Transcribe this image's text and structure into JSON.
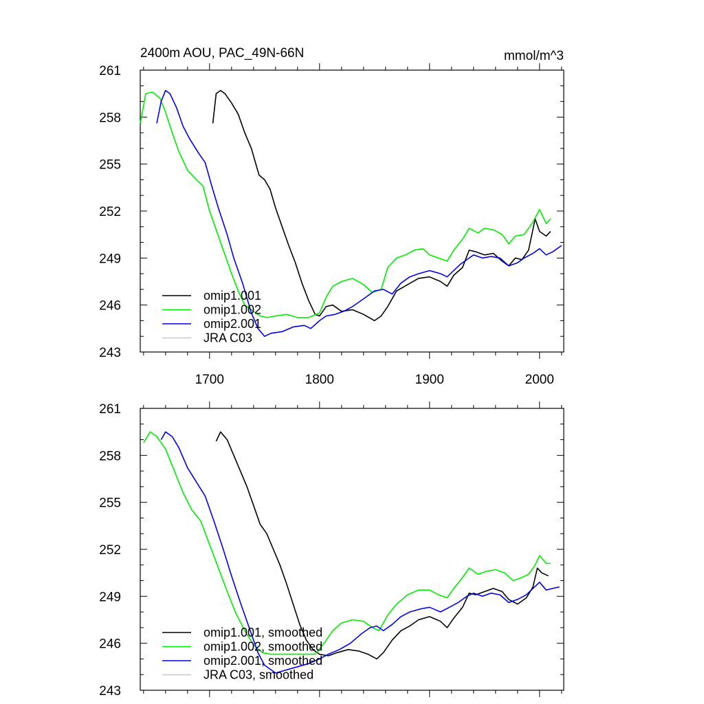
{
  "chart_data": [
    {
      "type": "line",
      "title": "2400m AOU, PAC_49N-66N",
      "units": "mmol/m^3",
      "xlim": [
        1637,
        2022
      ],
      "ylim": [
        243,
        261
      ],
      "xticks": [
        "1700",
        "1800",
        "1900",
        "2000"
      ],
      "yticks": [
        "261",
        "258",
        "255",
        "252",
        "249",
        "246",
        "243"
      ],
      "legend": {
        "placement": "lower-left",
        "entries": [
          "omip1.001",
          "omip1.002",
          "omip2.001",
          "JRA C03"
        ]
      },
      "series": [
        {
          "name": "omip1.001",
          "color": "#000000",
          "x": [
            1703,
            1706,
            1710,
            1714,
            1720,
            1726,
            1732,
            1738,
            1745,
            1750,
            1755,
            1760,
            1766,
            1772,
            1778,
            1784,
            1790,
            1796,
            1800,
            1806,
            1812,
            1820,
            1830,
            1840,
            1850,
            1856,
            1862,
            1870,
            1880,
            1890,
            1900,
            1910,
            1916,
            1922,
            1930,
            1936,
            1942,
            1950,
            1958,
            1966,
            1972,
            1978,
            1984,
            1990,
            1996,
            2000,
            2006,
            2010
          ],
          "values": [
            257.6,
            259.5,
            259.7,
            259.5,
            258.9,
            258.2,
            257.0,
            256.0,
            254.3,
            254.0,
            253.4,
            252.2,
            251.0,
            249.8,
            248.7,
            247.4,
            246.3,
            245.4,
            245.3,
            245.9,
            246.0,
            245.6,
            245.7,
            245.4,
            245.0,
            245.3,
            245.9,
            246.9,
            247.3,
            247.7,
            247.8,
            247.5,
            247.2,
            247.9,
            248.4,
            249.5,
            249.4,
            249.2,
            249.3,
            248.8,
            248.5,
            249.0,
            248.9,
            249.5,
            251.5,
            250.7,
            250.4,
            250.7
          ]
        },
        {
          "name": "omip1.002",
          "color": "#00ee00",
          "x": [
            1637,
            1642,
            1648,
            1655,
            1660,
            1666,
            1672,
            1680,
            1688,
            1694,
            1700,
            1706,
            1712,
            1720,
            1726,
            1732,
            1740,
            1746,
            1752,
            1760,
            1770,
            1780,
            1790,
            1800,
            1806,
            1812,
            1820,
            1830,
            1840,
            1848,
            1856,
            1862,
            1870,
            1878,
            1886,
            1894,
            1900,
            1908,
            1916,
            1922,
            1930,
            1936,
            1944,
            1950,
            1958,
            1966,
            1972,
            1978,
            1986,
            1994,
            2000,
            2006,
            2010
          ],
          "values": [
            257.6,
            259.5,
            259.6,
            259.2,
            258.3,
            257.0,
            255.8,
            254.6,
            254.0,
            253.6,
            252.0,
            250.8,
            249.6,
            248.0,
            246.9,
            246.0,
            245.6,
            245.3,
            245.2,
            245.3,
            245.4,
            245.2,
            245.2,
            245.5,
            246.5,
            247.2,
            247.5,
            247.7,
            247.3,
            246.8,
            247.0,
            248.4,
            249.0,
            249.2,
            249.5,
            249.6,
            249.2,
            249.0,
            248.8,
            249.5,
            250.2,
            250.9,
            250.6,
            250.9,
            250.8,
            250.5,
            249.9,
            250.4,
            250.5,
            251.3,
            252.1,
            251.2,
            251.5
          ]
        },
        {
          "name": "omip2.001",
          "color": "#0000ee",
          "x": [
            1652,
            1656,
            1660,
            1664,
            1670,
            1676,
            1682,
            1690,
            1696,
            1702,
            1708,
            1716,
            1722,
            1730,
            1738,
            1744,
            1750,
            1756,
            1766,
            1776,
            1786,
            1792,
            1800,
            1806,
            1814,
            1822,
            1830,
            1840,
            1850,
            1858,
            1866,
            1874,
            1882,
            1890,
            1900,
            1910,
            1916,
            1922,
            1928,
            1934,
            1940,
            1948,
            1956,
            1964,
            1972,
            1980,
            1986,
            1994,
            2000,
            2006,
            2012,
            2020
          ],
          "values": [
            257.6,
            259.0,
            259.7,
            259.5,
            258.6,
            257.4,
            256.6,
            255.7,
            255.1,
            253.6,
            252.2,
            250.5,
            249.0,
            247.4,
            245.5,
            244.5,
            244.0,
            244.2,
            244.3,
            244.6,
            244.7,
            244.5,
            245.0,
            245.3,
            245.4,
            245.6,
            245.9,
            246.4,
            246.9,
            247.0,
            246.7,
            247.4,
            247.8,
            248.0,
            248.2,
            248.0,
            247.8,
            248.2,
            248.6,
            248.9,
            249.2,
            249.0,
            249.1,
            249.0,
            248.5,
            248.7,
            249.0,
            249.3,
            249.6,
            249.2,
            249.4,
            249.8
          ]
        },
        {
          "name": "JRA C03",
          "color": "#c8c8c8",
          "x": [],
          "values": []
        }
      ]
    },
    {
      "type": "line",
      "title": "",
      "units": "",
      "xlim": [
        1637,
        2022
      ],
      "ylim": [
        243,
        261
      ],
      "xticks": [],
      "yticks": [
        "261",
        "258",
        "255",
        "252",
        "249",
        "246",
        "243"
      ],
      "legend": {
        "placement": "lower-left",
        "entries": [
          "omip1.001, smoothed",
          "omip1.002, smoothed",
          "omip2.001, smoothed",
          "JRA C03, smoothed"
        ]
      },
      "series": [
        {
          "name": "omip1.001, smoothed",
          "color": "#000000",
          "x": [
            1706,
            1710,
            1716,
            1722,
            1728,
            1734,
            1740,
            1746,
            1752,
            1758,
            1764,
            1770,
            1776,
            1782,
            1788,
            1794,
            1800,
            1808,
            1816,
            1826,
            1836,
            1844,
            1852,
            1858,
            1866,
            1874,
            1882,
            1890,
            1900,
            1910,
            1916,
            1922,
            1930,
            1936,
            1942,
            1950,
            1958,
            1966,
            1972,
            1980,
            1988,
            1994,
            1998,
            2002,
            2008
          ],
          "values": [
            258.9,
            259.5,
            259.0,
            258.0,
            257.0,
            256.0,
            254.8,
            253.6,
            253.0,
            252.0,
            251.0,
            249.8,
            248.5,
            247.2,
            246.2,
            245.6,
            245.3,
            245.2,
            245.4,
            245.6,
            245.5,
            245.3,
            245.0,
            245.4,
            246.2,
            246.8,
            247.1,
            247.5,
            247.7,
            247.4,
            247.0,
            247.6,
            248.3,
            249.2,
            249.1,
            249.3,
            249.5,
            249.3,
            248.8,
            248.5,
            248.9,
            249.6,
            250.8,
            250.5,
            250.3
          ]
        },
        {
          "name": "omip1.002, smoothed",
          "color": "#00ee00",
          "x": [
            1640,
            1646,
            1652,
            1660,
            1668,
            1676,
            1684,
            1692,
            1700,
            1708,
            1716,
            1724,
            1732,
            1740,
            1748,
            1756,
            1766,
            1776,
            1786,
            1796,
            1804,
            1812,
            1820,
            1830,
            1840,
            1848,
            1854,
            1862,
            1870,
            1880,
            1890,
            1900,
            1908,
            1916,
            1922,
            1930,
            1936,
            1944,
            1952,
            1960,
            1968,
            1976,
            1984,
            1990,
            1996,
            2000,
            2006,
            2010
          ],
          "values": [
            258.8,
            259.5,
            259.2,
            258.4,
            257.0,
            255.6,
            254.5,
            253.8,
            252.3,
            250.8,
            249.3,
            247.9,
            246.8,
            245.9,
            245.4,
            245.3,
            245.3,
            245.3,
            245.3,
            245.3,
            246.0,
            246.8,
            247.3,
            247.5,
            247.4,
            247.0,
            246.8,
            247.8,
            248.5,
            249.1,
            249.4,
            249.4,
            249.1,
            248.9,
            249.5,
            250.2,
            250.8,
            250.4,
            250.6,
            250.7,
            250.5,
            250.0,
            250.2,
            250.4,
            251.0,
            251.6,
            251.1,
            251.1
          ]
        },
        {
          "name": "omip2.001, smoothed",
          "color": "#0000ee",
          "x": [
            1656,
            1660,
            1666,
            1672,
            1680,
            1688,
            1696,
            1704,
            1712,
            1720,
            1728,
            1736,
            1744,
            1750,
            1760,
            1770,
            1780,
            1790,
            1800,
            1808,
            1818,
            1828,
            1838,
            1846,
            1852,
            1858,
            1866,
            1874,
            1882,
            1892,
            1900,
            1910,
            1918,
            1926,
            1934,
            1940,
            1948,
            1956,
            1964,
            1972,
            1980,
            1988,
            1994,
            2000,
            2006,
            2012,
            2018
          ],
          "values": [
            259.0,
            259.5,
            259.2,
            258.5,
            257.2,
            256.3,
            255.4,
            253.8,
            252.1,
            250.3,
            248.6,
            247.0,
            245.4,
            244.6,
            244.1,
            244.3,
            244.5,
            244.7,
            245.0,
            245.3,
            245.6,
            246.0,
            246.6,
            247.0,
            247.1,
            246.8,
            247.2,
            247.7,
            248.0,
            248.2,
            248.3,
            248.0,
            248.3,
            248.6,
            249.0,
            249.2,
            249.0,
            249.2,
            249.1,
            248.6,
            248.8,
            249.1,
            249.5,
            249.9,
            249.4,
            249.5,
            249.6
          ]
        },
        {
          "name": "JRA C03, smoothed",
          "color": "#c8c8c8",
          "x": [],
          "values": []
        }
      ]
    }
  ]
}
